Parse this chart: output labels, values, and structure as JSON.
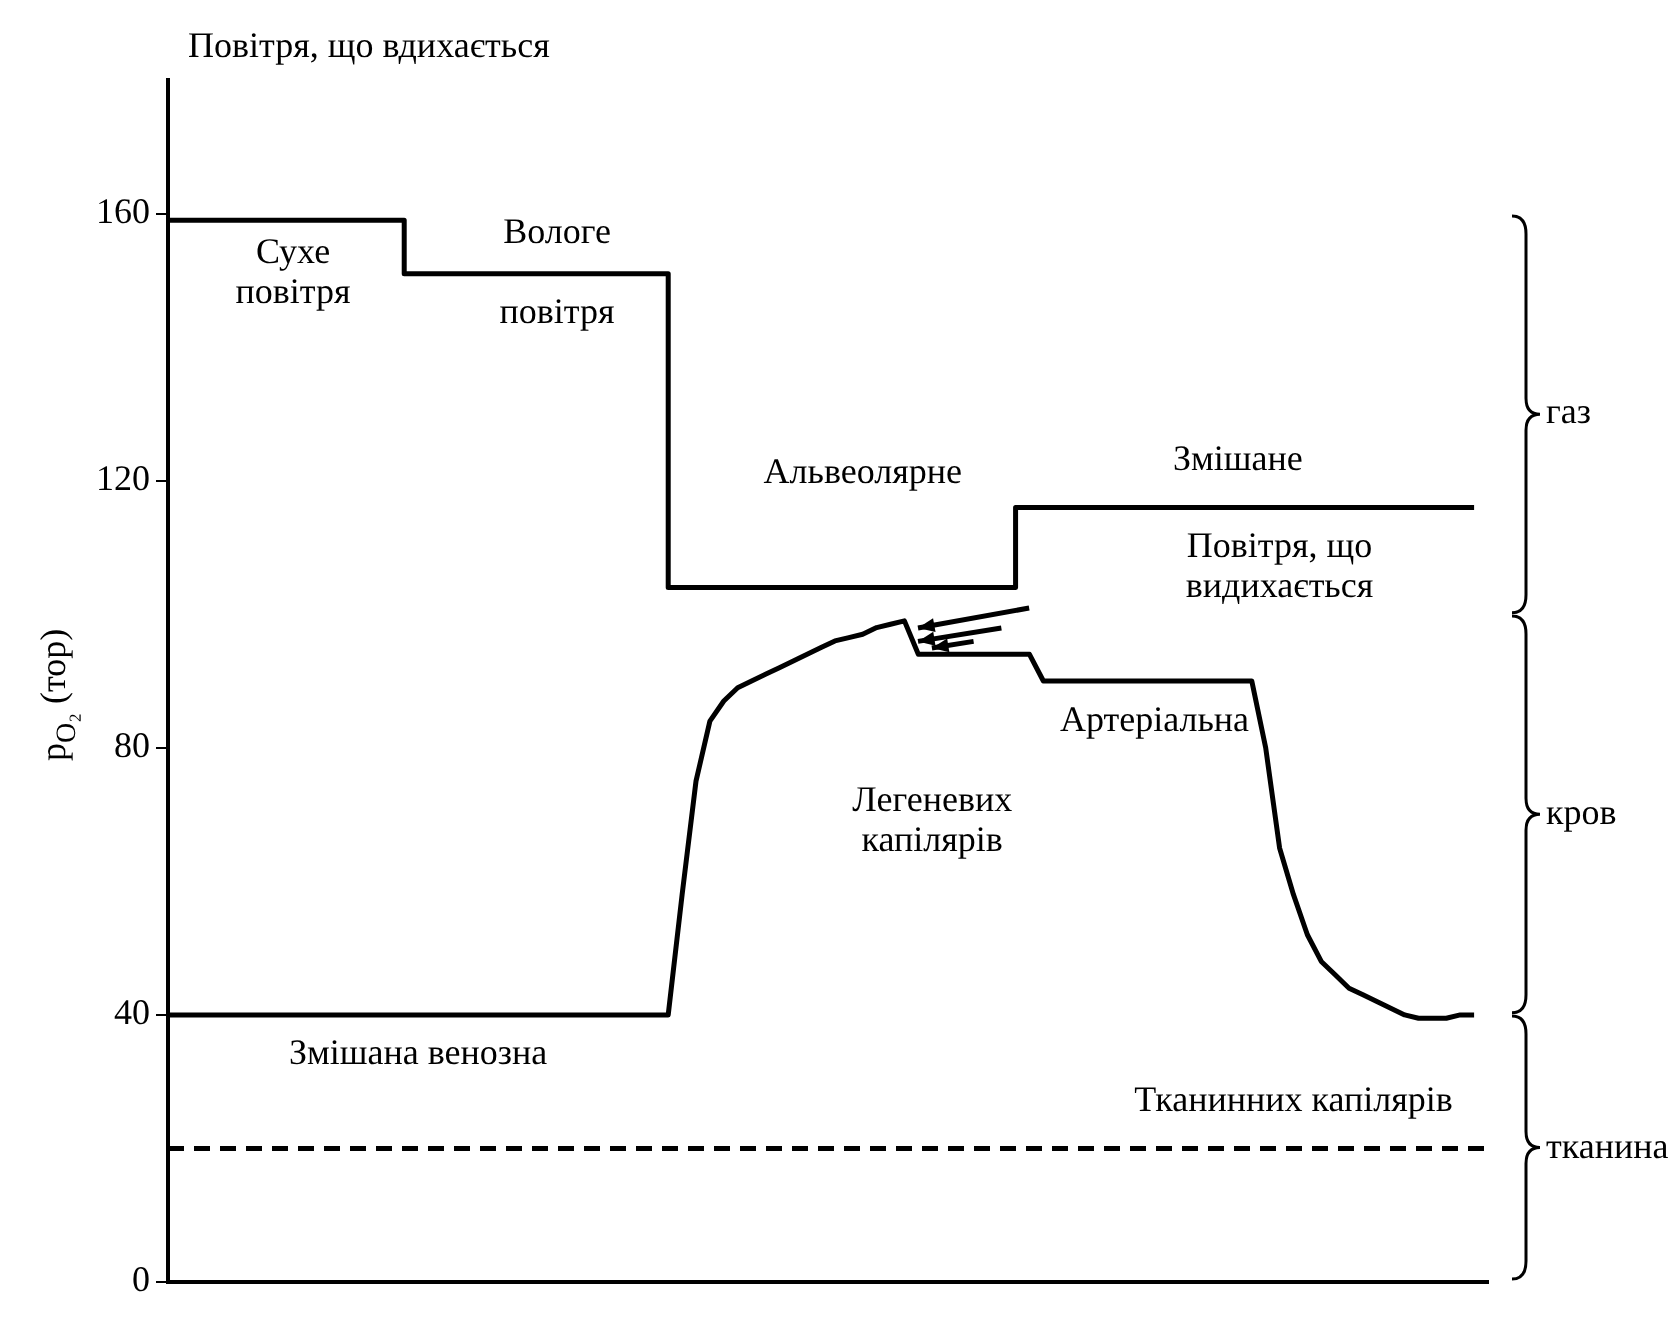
{
  "chart_data": {
    "type": "line",
    "title": "Повітря, що вдихається",
    "ylabel": "p$_{O₂}$ (тор)",
    "categories": [
      null,
      null,
      null,
      null,
      null,
      null,
      null,
      null,
      null,
      null,
      null,
      null,
      null,
      null,
      null,
      null,
      null,
      null,
      null,
      null,
      null,
      null,
      null,
      null,
      null,
      null,
      null,
      null,
      null,
      null,
      null,
      null,
      null,
      null,
      null,
      null,
      null,
      null,
      null,
      null,
      null,
      null,
      null,
      null,
      null,
      null,
      null,
      null,
      null,
      null,
      null,
      null,
      null,
      null,
      null,
      null,
      null,
      null,
      null,
      null,
      null,
      null,
      null,
      null,
      null,
      null,
      null,
      null,
      null,
      null,
      null,
      null,
      null,
      null,
      null,
      null,
      null,
      null,
      null,
      null,
      null,
      null,
      null,
      null,
      null,
      null,
      null,
      null,
      null,
      null,
      null,
      null,
      null,
      null,
      null,
      null
    ],
    "ylim": [
      0,
      180
    ],
    "yticks": [
      0,
      40,
      80,
      120,
      160
    ],
    "tick_labels": "y",
    "grid": false,
    "legend": false,
    "marker": "none",
    "series": [
      {
        "type": "step",
        "color": "#000000",
        "line_style": "solid",
        "values": [
          159,
          159,
          159,
          159,
          159,
          159,
          159,
          159,
          159,
          159,
          159,
          159,
          159,
          159,
          159,
          159,
          159,
          159,
          151,
          151,
          151,
          151,
          151,
          151,
          151,
          151,
          151,
          151,
          151,
          151,
          151,
          151,
          151,
          151,
          151,
          151,
          151,
          104,
          104,
          104,
          104,
          104,
          104,
          104,
          104,
          104,
          104,
          104,
          104,
          104,
          104,
          104,
          104,
          104,
          104,
          104,
          104,
          104,
          104,
          104,
          104,
          104,
          116,
          116,
          116,
          116,
          116,
          116,
          116,
          116,
          116,
          116,
          116,
          116,
          116,
          116,
          116,
          116,
          116,
          116,
          116,
          116,
          116,
          116,
          116,
          116,
          116,
          116,
          116,
          116,
          116,
          116,
          116,
          116,
          116,
          null
        ]
      },
      {
        "color": "#000000",
        "line_style": "solid",
        "values": [
          40,
          40,
          40,
          40,
          40,
          40,
          40,
          40,
          40,
          40,
          40,
          40,
          40,
          40,
          40,
          40,
          40,
          40,
          40,
          40,
          40,
          40,
          40,
          40,
          40,
          40,
          40,
          40,
          40,
          40,
          40,
          40,
          40,
          40,
          40,
          40,
          40,
          58,
          75,
          84,
          87,
          89,
          90,
          91,
          92,
          93,
          94,
          95,
          96,
          96.5,
          97,
          98,
          98.5,
          99,
          94,
          94,
          94,
          94,
          94,
          94,
          94,
          94,
          94,
          90,
          90,
          90,
          90,
          90,
          90,
          90,
          90,
          90,
          90,
          90,
          90,
          90,
          90,
          90,
          90,
          80,
          65,
          58,
          52,
          48,
          46,
          44,
          43,
          42,
          41,
          40,
          39.5,
          39.5,
          39.5,
          40,
          40,
          null
        ]
      },
      {
        "color": "#000000",
        "line_style": "dashed",
        "values": [
          20,
          20,
          20,
          20,
          20,
          20,
          20,
          20,
          20,
          20,
          20,
          20,
          20,
          20,
          20,
          20,
          20,
          20,
          20,
          20,
          20,
          20,
          20,
          20,
          20,
          20,
          20,
          20,
          20,
          20,
          20,
          20,
          20,
          20,
          20,
          20,
          20,
          20,
          20,
          20,
          20,
          20,
          20,
          20,
          20,
          20,
          20,
          20,
          20,
          20,
          20,
          20,
          20,
          20,
          20,
          20,
          20,
          20,
          20,
          20,
          20,
          20,
          20,
          20,
          20,
          20,
          20,
          20,
          20,
          20,
          20,
          20,
          20,
          20,
          20,
          20,
          20,
          20,
          20,
          20,
          20,
          20,
          20,
          20,
          20,
          20,
          20,
          20,
          20,
          20,
          20,
          20,
          20,
          20,
          20,
          20
        ]
      }
    ],
    "annotations": [
      "Сухе\nповітря",
      "Вологе\nповітря",
      "Альвеолярне",
      "Змішане",
      "Повітря, що\nвидихається",
      "Артеріальна",
      "Легеневих\nкапілярів",
      "Змішана венозна",
      "Тканинних капілярів",
      "газ",
      "кров",
      "тканина"
    ]
  }
}
